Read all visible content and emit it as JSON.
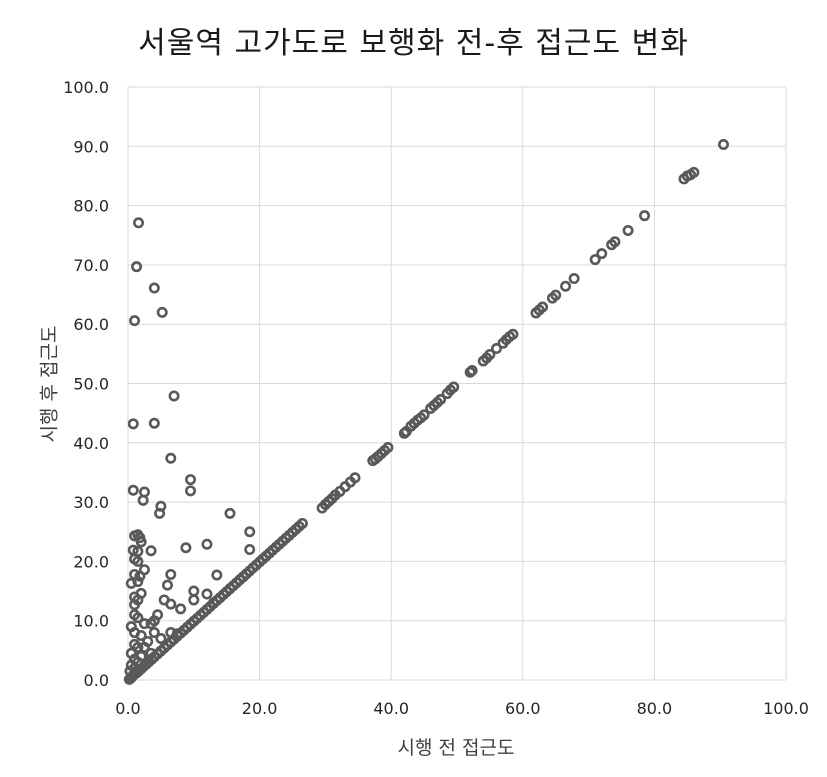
{
  "chart_data": {
    "type": "scatter",
    "title": "서울역 고가도로 보행화 전-후 접근도 변화",
    "xlabel": "시행 전 접근도",
    "ylabel": "시행 후 접근도",
    "xlim": [
      0,
      100
    ],
    "ylim": [
      0,
      100
    ],
    "x_ticks": [
      "0.0",
      "20.0",
      "40.0",
      "60.0",
      "80.0",
      "100.0"
    ],
    "y_ticks": [
      "0.0",
      "10.0",
      "20.0",
      "30.0",
      "40.0",
      "50.0",
      "60.0",
      "70.0",
      "80.0",
      "90.0",
      "100.0"
    ],
    "grid": true,
    "marker_color": "#595959",
    "series": [
      {
        "points": [
          [
            0.2,
            0.1
          ],
          [
            0.4,
            0.3
          ],
          [
            0.6,
            0.5
          ],
          [
            0.8,
            0.8
          ],
          [
            1.0,
            1.0
          ],
          [
            1.3,
            1.2
          ],
          [
            1.6,
            1.5
          ],
          [
            2.0,
            1.9
          ],
          [
            2.4,
            2.3
          ],
          [
            2.8,
            2.7
          ],
          [
            3.2,
            3.1
          ],
          [
            3.6,
            3.5
          ],
          [
            4.0,
            3.9
          ],
          [
            4.5,
            4.4
          ],
          [
            5.0,
            4.9
          ],
          [
            5.5,
            5.4
          ],
          [
            6.0,
            5.9
          ],
          [
            6.5,
            6.4
          ],
          [
            7.0,
            6.9
          ],
          [
            7.5,
            7.4
          ],
          [
            8.0,
            7.9
          ],
          [
            8.5,
            8.4
          ],
          [
            9.0,
            8.9
          ],
          [
            9.5,
            9.4
          ],
          [
            10.0,
            9.9
          ],
          [
            10.5,
            10.4
          ],
          [
            11.0,
            10.9
          ],
          [
            11.5,
            11.4
          ],
          [
            12.0,
            11.9
          ],
          [
            12.5,
            12.4
          ],
          [
            13.0,
            12.9
          ],
          [
            13.5,
            13.4
          ],
          [
            14.0,
            13.9
          ],
          [
            14.5,
            14.4
          ],
          [
            15.0,
            14.9
          ],
          [
            15.5,
            15.4
          ],
          [
            16.0,
            15.9
          ],
          [
            16.5,
            16.4
          ],
          [
            17.0,
            16.9
          ],
          [
            17.5,
            17.4
          ],
          [
            18.0,
            17.9
          ],
          [
            18.5,
            18.4
          ],
          [
            19.0,
            18.9
          ],
          [
            19.5,
            19.4
          ],
          [
            20.0,
            19.9
          ],
          [
            20.5,
            20.4
          ],
          [
            21.0,
            20.9
          ],
          [
            21.5,
            21.4
          ],
          [
            22.0,
            21.9
          ],
          [
            22.5,
            22.4
          ],
          [
            23.0,
            22.9
          ],
          [
            23.5,
            23.4
          ],
          [
            24.0,
            23.9
          ],
          [
            24.5,
            24.4
          ],
          [
            25.0,
            24.9
          ],
          [
            25.5,
            25.4
          ],
          [
            26.0,
            25.9
          ],
          [
            26.5,
            26.4
          ],
          [
            29.5,
            29.0
          ],
          [
            30.0,
            29.6
          ],
          [
            30.5,
            30.1
          ],
          [
            31.0,
            30.6
          ],
          [
            31.5,
            31.2
          ],
          [
            32.2,
            31.8
          ],
          [
            33.0,
            32.6
          ],
          [
            33.8,
            33.4
          ],
          [
            34.5,
            34.1
          ],
          [
            37.2,
            37.0
          ],
          [
            37.6,
            37.3
          ],
          [
            38.0,
            37.7
          ],
          [
            38.5,
            38.2
          ],
          [
            39.0,
            38.7
          ],
          [
            39.5,
            39.2
          ],
          [
            42.0,
            41.6
          ],
          [
            42.3,
            41.9
          ],
          [
            43.0,
            42.8
          ],
          [
            43.5,
            43.3
          ],
          [
            44.0,
            43.8
          ],
          [
            44.5,
            44.2
          ],
          [
            45.0,
            44.7
          ],
          [
            46.0,
            45.8
          ],
          [
            46.5,
            46.3
          ],
          [
            47.0,
            46.8
          ],
          [
            47.5,
            47.3
          ],
          [
            48.5,
            48.3
          ],
          [
            49.0,
            48.9
          ],
          [
            49.5,
            49.4
          ],
          [
            52.0,
            51.9
          ],
          [
            52.3,
            52.2
          ],
          [
            54.0,
            53.8
          ],
          [
            54.5,
            54.3
          ],
          [
            55.0,
            54.9
          ],
          [
            56.0,
            55.9
          ],
          [
            57.0,
            56.8
          ],
          [
            57.5,
            57.4
          ],
          [
            58.0,
            57.9
          ],
          [
            58.5,
            58.3
          ],
          [
            62.0,
            61.9
          ],
          [
            62.5,
            62.4
          ],
          [
            63.0,
            62.9
          ],
          [
            64.5,
            64.4
          ],
          [
            65.0,
            64.9
          ],
          [
            66.5,
            66.4
          ],
          [
            67.8,
            67.7
          ],
          [
            71.0,
            70.9
          ],
          [
            72.0,
            71.9
          ],
          [
            73.5,
            73.4
          ],
          [
            74.0,
            73.9
          ],
          [
            76.0,
            75.8
          ],
          [
            78.5,
            78.3
          ],
          [
            84.5,
            84.5
          ],
          [
            85.0,
            85.0
          ],
          [
            85.5,
            85.2
          ],
          [
            86.0,
            85.6
          ],
          [
            90.5,
            90.3
          ],
          [
            1.6,
            77.1
          ],
          [
            1.3,
            69.7
          ],
          [
            4.0,
            66.1
          ],
          [
            1.0,
            60.6
          ],
          [
            5.2,
            62.0
          ],
          [
            0.8,
            43.2
          ],
          [
            4.0,
            43.3
          ],
          [
            7.0,
            47.9
          ],
          [
            6.5,
            37.4
          ],
          [
            0.8,
            32.0
          ],
          [
            2.5,
            31.7
          ],
          [
            2.3,
            30.3
          ],
          [
            5.0,
            29.3
          ],
          [
            4.8,
            28.1
          ],
          [
            9.5,
            33.8
          ],
          [
            9.5,
            31.9
          ],
          [
            15.5,
            28.1
          ],
          [
            1.0,
            24.3
          ],
          [
            1.5,
            24.5
          ],
          [
            1.8,
            24.0
          ],
          [
            2.0,
            23.3
          ],
          [
            0.8,
            21.9
          ],
          [
            1.5,
            21.7
          ],
          [
            3.5,
            21.8
          ],
          [
            8.8,
            22.3
          ],
          [
            12.0,
            22.9
          ],
          [
            18.5,
            25.0
          ],
          [
            18.5,
            22.0
          ],
          [
            1.0,
            20.4
          ],
          [
            1.5,
            20.0
          ],
          [
            2.5,
            18.6
          ],
          [
            1.0,
            17.8
          ],
          [
            1.8,
            17.5
          ],
          [
            0.5,
            16.3
          ],
          [
            1.5,
            16.6
          ],
          [
            6.5,
            17.8
          ],
          [
            13.5,
            17.7
          ],
          [
            6.0,
            16.0
          ],
          [
            1.0,
            14.0
          ],
          [
            1.5,
            13.5
          ],
          [
            2.0,
            14.6
          ],
          [
            1.0,
            12.7
          ],
          [
            5.5,
            13.5
          ],
          [
            6.5,
            12.8
          ],
          [
            8.0,
            12.0
          ],
          [
            10.0,
            15.0
          ],
          [
            10.0,
            13.5
          ],
          [
            12.0,
            14.5
          ],
          [
            13.0,
            13.0
          ],
          [
            1.0,
            11.0
          ],
          [
            1.5,
            10.5
          ],
          [
            0.5,
            9.0
          ],
          [
            2.5,
            9.5
          ],
          [
            3.5,
            9.5
          ],
          [
            4.0,
            10.0
          ],
          [
            4.5,
            11.0
          ],
          [
            1.0,
            8.0
          ],
          [
            2.0,
            7.5
          ],
          [
            4.0,
            8.0
          ],
          [
            5.0,
            7.0
          ],
          [
            6.5,
            8.0
          ],
          [
            7.5,
            7.8
          ],
          [
            1.0,
            6.0
          ],
          [
            1.5,
            5.5
          ],
          [
            2.5,
            5.5
          ],
          [
            3.0,
            6.5
          ],
          [
            0.5,
            4.5
          ],
          [
            1.0,
            3.5
          ],
          [
            2.0,
            4.0
          ],
          [
            3.5,
            4.5
          ],
          [
            0.5,
            2.5
          ],
          [
            1.0,
            2.0
          ],
          [
            1.5,
            3.0
          ],
          [
            0.3,
            1.5
          ]
        ]
      }
    ]
  }
}
